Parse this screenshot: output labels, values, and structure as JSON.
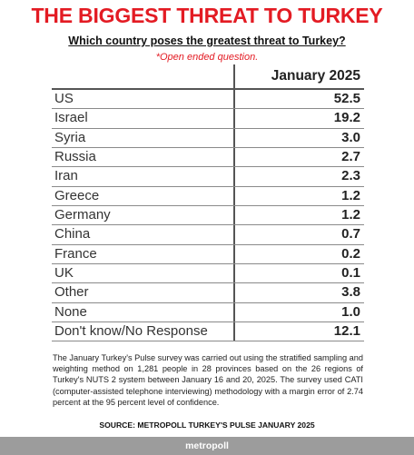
{
  "header": {
    "title": "THE BIGGEST THREAT TO TURKEY",
    "subtitle": "Which country poses the greatest threat to Turkey?",
    "note": "*Open ended question."
  },
  "chart_data": {
    "type": "table",
    "title": "THE BIGGEST THREAT TO TURKEY",
    "subtitle": "Which country poses the greatest threat to Turkey?",
    "column_header": "January 2025",
    "categories": [
      "US",
      "Israel",
      "Syria",
      "Russia",
      "Iran",
      "Greece",
      "Germany",
      "China",
      "France",
      "UK",
      "Other",
      "None",
      "Don't know/No Response"
    ],
    "values": [
      "52.5",
      "19.2",
      "3.0",
      "2.7",
      "2.3",
      "1.2",
      "1.2",
      "0.7",
      "0.2",
      "0.1",
      "3.8",
      "1.0",
      "12.1"
    ]
  },
  "footnote": "The January Turkey's Pulse survey was carried out using the stratified sampling and weighting method on 1,281 people in 28 provinces based on the 26 regions of Turkey's NUTS 2 system between January 16 and 20, 2025. The survey used CATI (computer-assisted telephone interviewing) methodology with a margin error of 2.74 percent at the 95 percent level of confidence.",
  "source": "SOURCE: METROPOLL TURKEY'S PULSE JANUARY 2025",
  "brand": "metropoll",
  "colors": {
    "accent": "#e31b23",
    "footer": "#9c9c9c"
  }
}
